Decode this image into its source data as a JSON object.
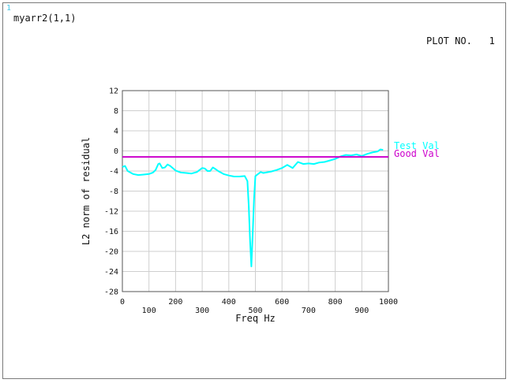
{
  "header": {
    "window_number": "1",
    "array_label": "myarr2(1,1)",
    "plot_number": "PLOT NO.   1"
  },
  "colors": {
    "test_val": "#00ffff",
    "good_val": "#cc00cc",
    "grid": "#cfcfcf",
    "window_number": "#46c8e8"
  },
  "chart_data": {
    "type": "line",
    "xlabel": "Freq Hz",
    "ylabel": "L2 norm of residual",
    "xlim": [
      0,
      1000
    ],
    "ylim": [
      -28,
      12
    ],
    "x_ticks_low": [
      0,
      200,
      400,
      600,
      800,
      1000
    ],
    "x_ticks_high": [
      100,
      300,
      500,
      700,
      900
    ],
    "y_ticks": [
      12,
      8,
      4,
      0,
      -4,
      -8,
      -12,
      -16,
      -20,
      -24,
      -28
    ],
    "grid": true,
    "legend_position": "right",
    "series": [
      {
        "name": "Test Val",
        "color": "#00ffff",
        "x": [
          0,
          10,
          20,
          40,
          60,
          80,
          100,
          115,
          125,
          135,
          140,
          150,
          160,
          170,
          180,
          200,
          220,
          240,
          260,
          280,
          300,
          310,
          320,
          330,
          340,
          350,
          360,
          380,
          400,
          420,
          440,
          460,
          470,
          475,
          480,
          485,
          490,
          495,
          500,
          510,
          520,
          530,
          540,
          560,
          580,
          600,
          620,
          640,
          660,
          670,
          680,
          700,
          720,
          740,
          760,
          780,
          800,
          820,
          840,
          860,
          880,
          900,
          920,
          940,
          960,
          970,
          980
        ],
        "y": [
          -3.2,
          -3.0,
          -4.0,
          -4.6,
          -4.8,
          -4.7,
          -4.6,
          -4.3,
          -3.8,
          -2.6,
          -2.5,
          -3.4,
          -3.3,
          -2.7,
          -3.0,
          -3.9,
          -4.3,
          -4.4,
          -4.5,
          -4.2,
          -3.4,
          -3.5,
          -4.0,
          -4.0,
          -3.3,
          -3.6,
          -4.0,
          -4.6,
          -4.9,
          -5.1,
          -5.1,
          -5.0,
          -6.0,
          -11.0,
          -18.0,
          -23.0,
          -16.5,
          -9.5,
          -5.0,
          -4.6,
          -4.2,
          -4.4,
          -4.3,
          -4.1,
          -3.8,
          -3.4,
          -2.8,
          -3.4,
          -2.2,
          -2.4,
          -2.6,
          -2.5,
          -2.6,
          -2.3,
          -2.2,
          -1.9,
          -1.6,
          -1.1,
          -0.8,
          -0.9,
          -0.7,
          -1.0,
          -0.6,
          -0.3,
          -0.1,
          0.3,
          0.2
        ]
      },
      {
        "name": "Good Val",
        "color": "#cc00cc",
        "x": [
          0,
          1000
        ],
        "y": [
          -1.2,
          -1.2
        ]
      }
    ]
  }
}
